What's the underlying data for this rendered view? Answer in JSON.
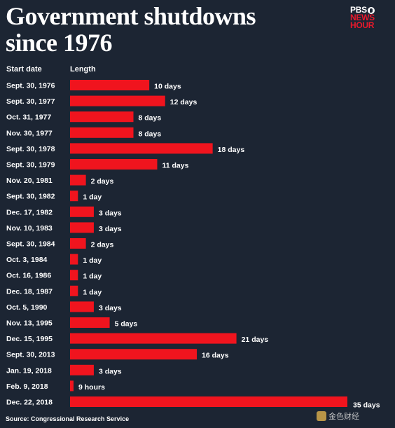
{
  "header": {
    "title_line1": "Government shutdowns",
    "title_line2": "since 1976",
    "logo_line1": "PBS",
    "logo_line2": "NEWS",
    "logo_line3": "HOUR"
  },
  "columns": {
    "start_date": "Start date",
    "length": "Length"
  },
  "footer": {
    "source": "Source: Congressional Research Service",
    "watermark": "金色财经"
  },
  "colors": {
    "background": "#1c2533",
    "bar": "#f0141e",
    "text": "#ffffff",
    "brand_red": "#e8192c"
  },
  "chart_data": {
    "type": "bar",
    "orientation": "horizontal",
    "unit": "days",
    "title": "Government shutdowns since 1976",
    "xlabel": "Length",
    "ylabel": "Start date",
    "categories": [
      "Sept. 30, 1976",
      "Sept. 30, 1977",
      "Oct. 31, 1977",
      "Nov. 30, 1977",
      "Sept. 30, 1978",
      "Sept. 30, 1979",
      "Nov. 20, 1981",
      "Sept. 30, 1982",
      "Dec. 17, 1982",
      "Nov. 10, 1983",
      "Sept. 30, 1984",
      "Oct. 3, 1984",
      "Oct. 16, 1986",
      "Dec. 18, 1987",
      "Oct. 5, 1990",
      "Nov. 13, 1995",
      "Dec. 15, 1995",
      "Sept. 30, 2013",
      "Jan. 19, 2018",
      "Feb. 9, 2018",
      "Dec. 22, 2018"
    ],
    "values": [
      10,
      12,
      8,
      8,
      18,
      11,
      2,
      1,
      3,
      3,
      2,
      1,
      1,
      1,
      3,
      5,
      21,
      16,
      3,
      0.375,
      35
    ],
    "labels": [
      "10 days",
      "12 days",
      "8 days",
      "8 days",
      "18 days",
      "11 days",
      "2 days",
      "1 day",
      "3 days",
      "3 days",
      "2 days",
      "1 day",
      "1 day",
      "1 day",
      "3 days",
      "5 days",
      "21 days",
      "16 days",
      "3 days",
      "9 hours",
      "35 days"
    ],
    "xlim": [
      0,
      35
    ],
    "grid": false,
    "legend": "none"
  }
}
